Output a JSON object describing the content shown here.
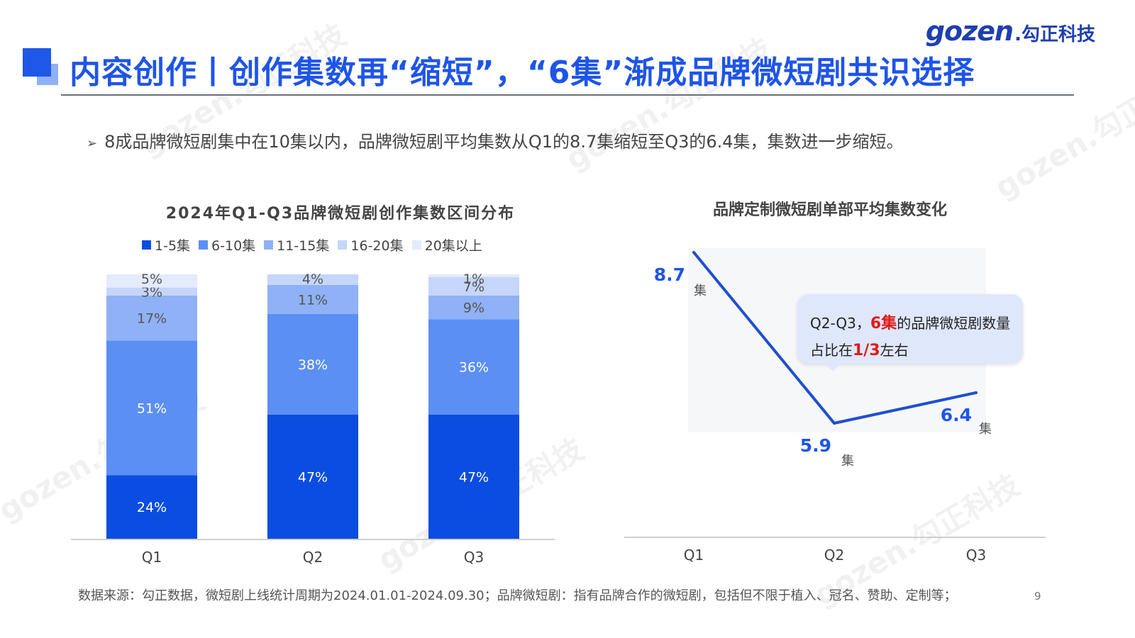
{
  "header": {
    "title": "内容创作丨创作集数再“缩短”，“6集”渐成品牌微短剧共识选择",
    "logo_en": "gozen",
    "logo_cn": ".勾正科技"
  },
  "summary": {
    "arrow": "➢",
    "text": "8成品牌微短剧集中在10集以内，品牌微短剧平均集数从Q1的8.7集缩短至Q3的6.4集，集数进一步缩短。"
  },
  "colors": {
    "accent": "#1e55e8",
    "series": [
      "#0a4de0",
      "#5b8ff4",
      "#8fb1f5",
      "#c5d6fa",
      "#e3ebfc"
    ],
    "line": "#1f4fd0",
    "red": "#e01a1a"
  },
  "chart_data": [
    {
      "type": "bar",
      "stacked": true,
      "title": "2024年Q1-Q3品牌微短剧创作集数区间分布",
      "categories": [
        "Q1",
        "Q2",
        "Q3"
      ],
      "series": [
        {
          "name": "1-5集",
          "values": [
            24,
            47,
            47
          ]
        },
        {
          "name": "6-10集",
          "values": [
            51,
            38,
            36
          ]
        },
        {
          "name": "11-15集",
          "values": [
            17,
            11,
            9
          ]
        },
        {
          "name": "16-20集",
          "values": [
            3,
            4,
            7
          ]
        },
        {
          "name": "20集以上",
          "values": [
            5,
            0,
            1
          ]
        }
      ],
      "value_labels": [
        [
          "24%",
          "51%",
          "17%",
          "3%",
          "5%"
        ],
        [
          "47%",
          "38%",
          "11%",
          "4%",
          ""
        ],
        [
          "47%",
          "36%",
          "9%",
          "7%",
          "1%"
        ]
      ],
      "legend_position": "top",
      "ylim": [
        0,
        100
      ]
    },
    {
      "type": "line",
      "title": "品牌定制微短剧单部平均集数变化",
      "categories": [
        "Q1",
        "Q2",
        "Q3"
      ],
      "series": [
        {
          "values": [
            8.7,
            5.9,
            6.4
          ]
        }
      ],
      "value_labels": [
        "8.7",
        "5.9",
        "6.4"
      ],
      "unit": "集",
      "annotation": {
        "line1_prefix": "Q2-Q3，",
        "line1_highlight": "6集",
        "line1_suffix": "的品牌微短剧数量",
        "line2_prefix": "占比在",
        "line2_highlight": "1/3",
        "line2_suffix": "左右"
      }
    }
  ],
  "footer": {
    "source": "数据来源：勾正数据，微短剧上线统计周期为2024.01.01-2024.09.30；品牌微短剧：指有品牌合作的微短剧，包括但不限于植入、冠名、赞助、定制等；",
    "page": "9"
  },
  "watermark": "gozen.勾正科技"
}
